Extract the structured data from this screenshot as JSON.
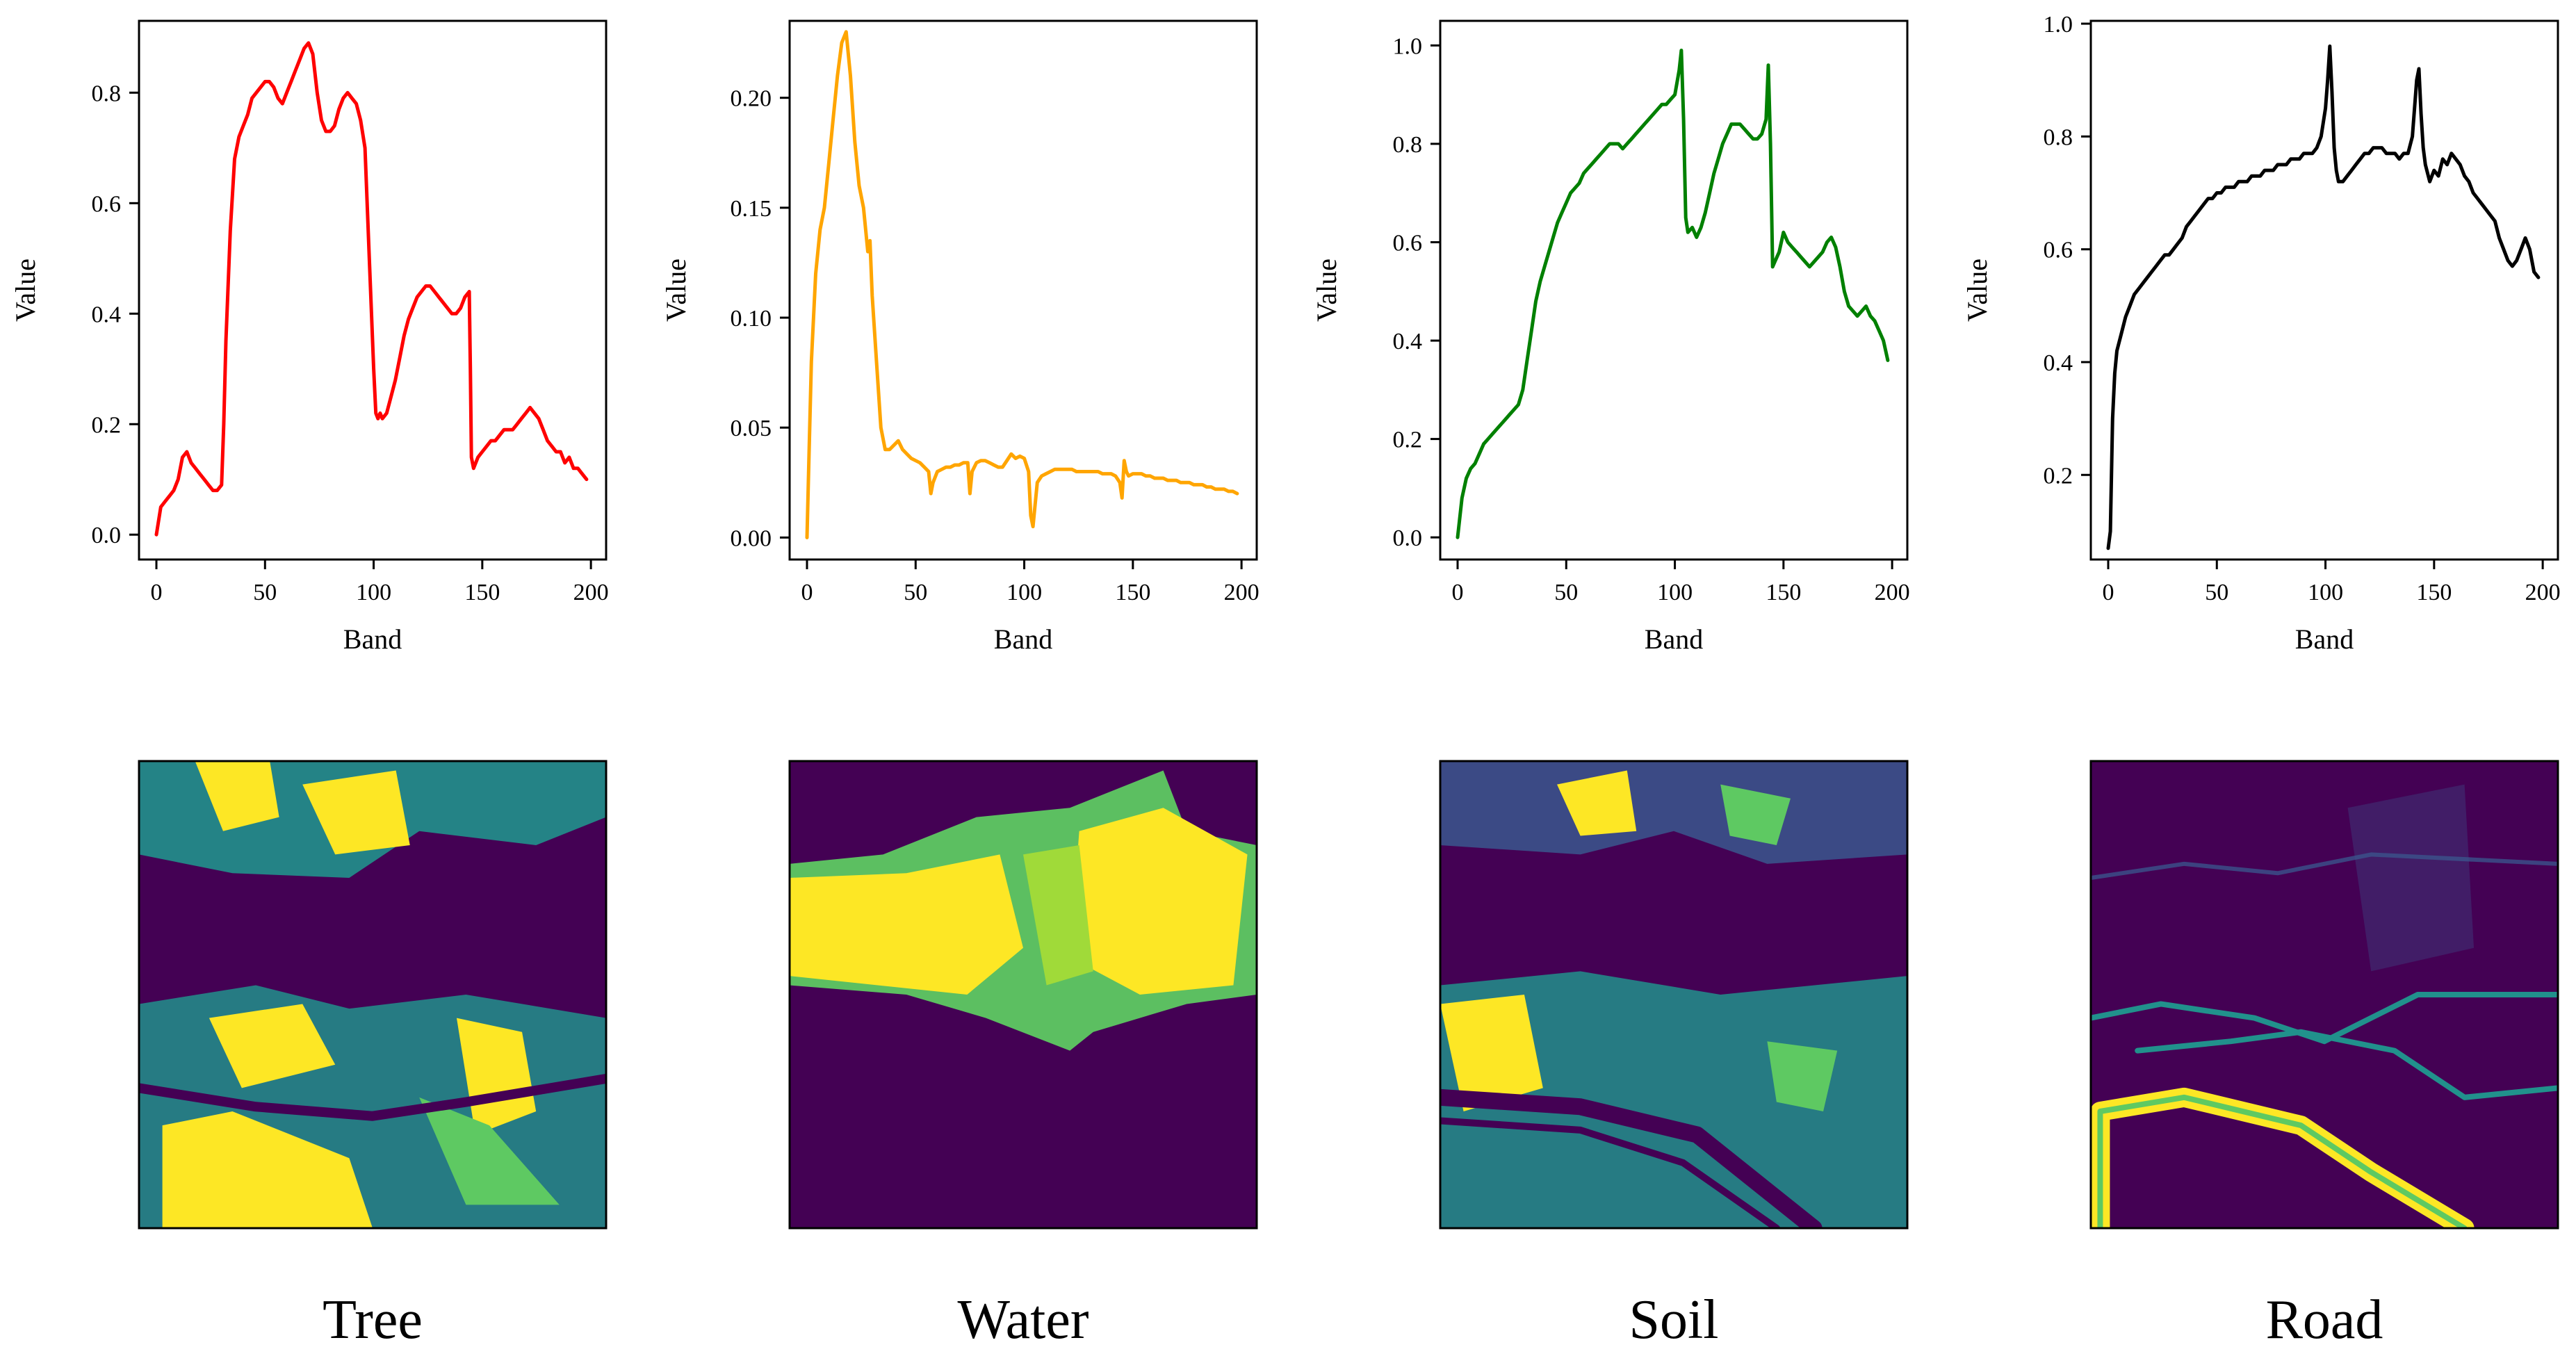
{
  "chart_data": [
    {
      "type": "line",
      "title": "",
      "caption": "Tree",
      "xlabel": "Band",
      "ylabel": "Value",
      "color": "#ff0000",
      "xlim": [
        -8,
        207
      ],
      "ylim": [
        -0.045,
        0.93
      ],
      "xticks": [
        0,
        50,
        100,
        150,
        200
      ],
      "yticks": [
        0.0,
        0.2,
        0.4,
        0.6,
        0.8
      ],
      "ytick_labels": [
        "0.0",
        "0.2",
        "0.4",
        "0.6",
        "0.8"
      ],
      "x": [
        0,
        2,
        4,
        6,
        8,
        10,
        12,
        14,
        16,
        18,
        20,
        22,
        24,
        26,
        28,
        30,
        31,
        32,
        34,
        36,
        38,
        40,
        42,
        44,
        46,
        48,
        50,
        52,
        54,
        56,
        58,
        60,
        62,
        64,
        66,
        68,
        70,
        72,
        74,
        76,
        78,
        80,
        82,
        84,
        86,
        88,
        90,
        92,
        94,
        96,
        98,
        100,
        101,
        102,
        103,
        104,
        106,
        108,
        110,
        112,
        114,
        116,
        118,
        120,
        122,
        124,
        126,
        128,
        130,
        132,
        134,
        136,
        138,
        140,
        142,
        144,
        144.5,
        145,
        146,
        148,
        150,
        152,
        154,
        156,
        158,
        160,
        162,
        164,
        166,
        168,
        170,
        172,
        174,
        176,
        178,
        180,
        182,
        184,
        186,
        188,
        190,
        192,
        194,
        196,
        198
      ],
      "values": [
        0.0,
        0.05,
        0.06,
        0.07,
        0.08,
        0.1,
        0.14,
        0.15,
        0.13,
        0.12,
        0.11,
        0.1,
        0.09,
        0.08,
        0.08,
        0.09,
        0.2,
        0.35,
        0.55,
        0.68,
        0.72,
        0.74,
        0.76,
        0.79,
        0.8,
        0.81,
        0.82,
        0.82,
        0.81,
        0.79,
        0.78,
        0.8,
        0.82,
        0.84,
        0.86,
        0.88,
        0.89,
        0.87,
        0.8,
        0.75,
        0.73,
        0.73,
        0.74,
        0.77,
        0.79,
        0.8,
        0.79,
        0.78,
        0.75,
        0.7,
        0.5,
        0.3,
        0.22,
        0.21,
        0.22,
        0.21,
        0.22,
        0.25,
        0.28,
        0.32,
        0.36,
        0.39,
        0.41,
        0.43,
        0.44,
        0.45,
        0.45,
        0.44,
        0.43,
        0.42,
        0.41,
        0.4,
        0.4,
        0.41,
        0.43,
        0.44,
        0.3,
        0.14,
        0.12,
        0.14,
        0.15,
        0.16,
        0.17,
        0.17,
        0.18,
        0.19,
        0.19,
        0.19,
        0.2,
        0.21,
        0.22,
        0.23,
        0.22,
        0.21,
        0.19,
        0.17,
        0.16,
        0.15,
        0.15,
        0.13,
        0.14,
        0.12,
        0.12,
        0.11,
        0.1
      ]
    },
    {
      "type": "line",
      "title": "",
      "caption": "Water",
      "xlabel": "Band",
      "ylabel": "Value",
      "color": "#ffa500",
      "xlim": [
        -8,
        207
      ],
      "ylim": [
        -0.01,
        0.235
      ],
      "xticks": [
        0,
        50,
        100,
        150,
        200
      ],
      "yticks": [
        0.0,
        0.05,
        0.1,
        0.15,
        0.2
      ],
      "ytick_labels": [
        "0.00",
        "0.05",
        "0.10",
        "0.15",
        "0.20"
      ],
      "x": [
        0,
        1,
        2,
        3,
        4,
        6,
        8,
        10,
        12,
        14,
        16,
        18,
        20,
        22,
        24,
        26,
        28,
        29,
        30,
        32,
        34,
        36,
        38,
        40,
        42,
        44,
        46,
        48,
        50,
        52,
        54,
        56,
        57,
        58,
        60,
        62,
        64,
        66,
        68,
        70,
        72,
        74,
        75,
        76,
        78,
        80,
        82,
        84,
        86,
        88,
        90,
        92,
        94,
        96,
        98,
        100,
        102,
        103,
        104,
        105,
        106,
        108,
        110,
        112,
        114,
        116,
        118,
        120,
        122,
        124,
        126,
        128,
        130,
        132,
        134,
        136,
        138,
        140,
        142,
        144,
        145,
        146,
        147,
        148,
        150,
        152,
        154,
        156,
        158,
        160,
        162,
        164,
        166,
        168,
        170,
        172,
        174,
        176,
        178,
        180,
        182,
        184,
        186,
        188,
        190,
        192,
        194,
        196,
        198
      ],
      "values": [
        0.0,
        0.04,
        0.08,
        0.1,
        0.12,
        0.14,
        0.15,
        0.17,
        0.19,
        0.21,
        0.225,
        0.23,
        0.21,
        0.18,
        0.16,
        0.15,
        0.13,
        0.135,
        0.11,
        0.08,
        0.05,
        0.04,
        0.04,
        0.042,
        0.044,
        0.04,
        0.038,
        0.036,
        0.035,
        0.034,
        0.032,
        0.03,
        0.02,
        0.025,
        0.03,
        0.031,
        0.032,
        0.032,
        0.033,
        0.033,
        0.034,
        0.034,
        0.02,
        0.03,
        0.034,
        0.035,
        0.035,
        0.034,
        0.033,
        0.032,
        0.032,
        0.035,
        0.038,
        0.036,
        0.037,
        0.036,
        0.03,
        0.01,
        0.005,
        0.015,
        0.025,
        0.028,
        0.029,
        0.03,
        0.031,
        0.031,
        0.031,
        0.031,
        0.031,
        0.03,
        0.03,
        0.03,
        0.03,
        0.03,
        0.03,
        0.029,
        0.029,
        0.029,
        0.028,
        0.025,
        0.018,
        0.035,
        0.03,
        0.028,
        0.029,
        0.029,
        0.029,
        0.028,
        0.028,
        0.027,
        0.027,
        0.027,
        0.026,
        0.026,
        0.026,
        0.025,
        0.025,
        0.025,
        0.024,
        0.024,
        0.024,
        0.023,
        0.023,
        0.022,
        0.022,
        0.022,
        0.021,
        0.021,
        0.02
      ]
    },
    {
      "type": "line",
      "title": "",
      "caption": "Soil",
      "xlabel": "Band",
      "ylabel": "Value",
      "color": "#008000",
      "xlim": [
        -8,
        207
      ],
      "ylim": [
        -0.045,
        1.05
      ],
      "xticks": [
        0,
        50,
        100,
        150,
        200
      ],
      "yticks": [
        0.0,
        0.2,
        0.4,
        0.6,
        0.8,
        1.0
      ],
      "ytick_labels": [
        "0.0",
        "0.2",
        "0.4",
        "0.6",
        "0.8",
        "1.0"
      ],
      "x": [
        0,
        2,
        4,
        6,
        8,
        10,
        12,
        14,
        16,
        18,
        20,
        22,
        24,
        26,
        28,
        30,
        32,
        34,
        36,
        38,
        40,
        42,
        44,
        46,
        48,
        50,
        52,
        54,
        56,
        58,
        60,
        62,
        64,
        66,
        68,
        70,
        72,
        74,
        76,
        78,
        80,
        82,
        84,
        86,
        88,
        90,
        92,
        94,
        96,
        98,
        100,
        102,
        103,
        104,
        105,
        106,
        108,
        110,
        112,
        114,
        116,
        118,
        120,
        122,
        124,
        126,
        128,
        130,
        132,
        134,
        136,
        138,
        140,
        142,
        143,
        144,
        145,
        146,
        148,
        150,
        152,
        154,
        156,
        158,
        160,
        162,
        164,
        166,
        168,
        170,
        172,
        174,
        176,
        178,
        180,
        182,
        184,
        186,
        188,
        190,
        192,
        194,
        196,
        198
      ],
      "values": [
        0.0,
        0.08,
        0.12,
        0.14,
        0.15,
        0.17,
        0.19,
        0.2,
        0.21,
        0.22,
        0.23,
        0.24,
        0.25,
        0.26,
        0.27,
        0.3,
        0.36,
        0.42,
        0.48,
        0.52,
        0.55,
        0.58,
        0.61,
        0.64,
        0.66,
        0.68,
        0.7,
        0.71,
        0.72,
        0.74,
        0.75,
        0.76,
        0.77,
        0.78,
        0.79,
        0.8,
        0.8,
        0.8,
        0.79,
        0.8,
        0.81,
        0.82,
        0.83,
        0.84,
        0.85,
        0.86,
        0.87,
        0.88,
        0.88,
        0.89,
        0.9,
        0.95,
        0.99,
        0.85,
        0.65,
        0.62,
        0.63,
        0.61,
        0.63,
        0.66,
        0.7,
        0.74,
        0.77,
        0.8,
        0.82,
        0.84,
        0.84,
        0.84,
        0.83,
        0.82,
        0.81,
        0.81,
        0.82,
        0.85,
        0.96,
        0.8,
        0.55,
        0.56,
        0.58,
        0.62,
        0.6,
        0.59,
        0.58,
        0.57,
        0.56,
        0.55,
        0.56,
        0.57,
        0.58,
        0.6,
        0.61,
        0.59,
        0.55,
        0.5,
        0.47,
        0.46,
        0.45,
        0.46,
        0.47,
        0.45,
        0.44,
        0.42,
        0.4,
        0.36
      ]
    },
    {
      "type": "line",
      "title": "",
      "caption": "Road",
      "xlabel": "Band",
      "ylabel": "Value",
      "color": "#000000",
      "xlim": [
        -8,
        207
      ],
      "ylim": [
        0.05,
        1.005
      ],
      "xticks": [
        0,
        50,
        100,
        150,
        200
      ],
      "yticks": [
        0.2,
        0.4,
        0.6,
        0.8,
        1.0
      ],
      "ytick_labels": [
        "0.2",
        "0.4",
        "0.6",
        "0.8",
        "1.0"
      ],
      "x": [
        0,
        1,
        2,
        3,
        4,
        6,
        8,
        10,
        12,
        14,
        16,
        18,
        20,
        22,
        24,
        26,
        28,
        30,
        32,
        34,
        36,
        38,
        40,
        42,
        44,
        46,
        48,
        50,
        52,
        54,
        56,
        58,
        60,
        62,
        64,
        66,
        68,
        70,
        72,
        74,
        76,
        78,
        80,
        82,
        84,
        86,
        88,
        90,
        92,
        94,
        96,
        98,
        100,
        101,
        102,
        103,
        104,
        105,
        106,
        108,
        110,
        112,
        114,
        116,
        118,
        120,
        122,
        124,
        126,
        128,
        130,
        132,
        134,
        136,
        138,
        140,
        141,
        142,
        143,
        144,
        145,
        146,
        148,
        150,
        152,
        154,
        156,
        158,
        160,
        162,
        164,
        166,
        168,
        170,
        172,
        174,
        176,
        178,
        180,
        182,
        184,
        186,
        188,
        190,
        192,
        194,
        196,
        198
      ],
      "values": [
        0.07,
        0.1,
        0.3,
        0.38,
        0.42,
        0.45,
        0.48,
        0.5,
        0.52,
        0.53,
        0.54,
        0.55,
        0.56,
        0.57,
        0.58,
        0.59,
        0.59,
        0.6,
        0.61,
        0.62,
        0.64,
        0.65,
        0.66,
        0.67,
        0.68,
        0.69,
        0.69,
        0.7,
        0.7,
        0.71,
        0.71,
        0.71,
        0.72,
        0.72,
        0.72,
        0.73,
        0.73,
        0.73,
        0.74,
        0.74,
        0.74,
        0.75,
        0.75,
        0.75,
        0.76,
        0.76,
        0.76,
        0.77,
        0.77,
        0.77,
        0.78,
        0.8,
        0.85,
        0.9,
        0.96,
        0.88,
        0.78,
        0.74,
        0.72,
        0.72,
        0.73,
        0.74,
        0.75,
        0.76,
        0.77,
        0.77,
        0.78,
        0.78,
        0.78,
        0.77,
        0.77,
        0.77,
        0.76,
        0.77,
        0.77,
        0.8,
        0.85,
        0.9,
        0.92,
        0.84,
        0.78,
        0.75,
        0.72,
        0.74,
        0.73,
        0.76,
        0.75,
        0.77,
        0.76,
        0.75,
        0.73,
        0.72,
        0.7,
        0.69,
        0.68,
        0.67,
        0.66,
        0.65,
        0.62,
        0.6,
        0.58,
        0.57,
        0.58,
        0.6,
        0.62,
        0.6,
        0.56,
        0.55
      ]
    }
  ]
}
